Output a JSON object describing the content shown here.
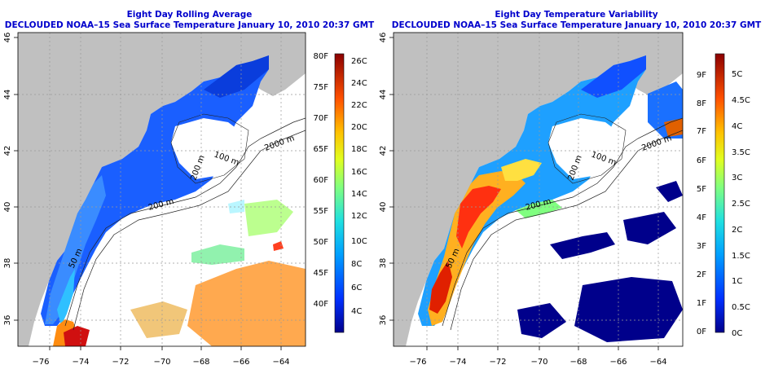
{
  "left_panel": {
    "title": "Eight Day Rolling Average",
    "subtitle": "DECLOUDED NOAA–15 Sea Surface Temperature January 10, 2010 20:37 GMT",
    "colorbar": {
      "fahrenheit": [
        "80F",
        "75F",
        "70F",
        "65F",
        "60F",
        "55F",
        "50F",
        "45F",
        "40F"
      ],
      "celsius": [
        "26C",
        "24C",
        "22C",
        "20C",
        "18C",
        "16C",
        "14C",
        "12C",
        "10C",
        "8C",
        "6C",
        "4C"
      ]
    },
    "contour_labels": [
      "100 m",
      "2000 m",
      "200 m",
      "200 m",
      "50 m"
    ]
  },
  "right_panel": {
    "title": "Eight Day Temperature Variability",
    "subtitle": "DECLOUDED NOAA–15 Sea Surface Temperature January 10, 2010 20:37 GMT",
    "colorbar": {
      "fahrenheit": [
        "9F",
        "8F",
        "7F",
        "6F",
        "5F",
        "4F",
        "3F",
        "2F",
        "1F",
        "0F"
      ],
      "celsius": [
        "5C",
        "4.5C",
        "4C",
        "3.5C",
        "3C",
        "2.5C",
        "2C",
        "1.5C",
        "1C",
        "0.5C",
        "0C"
      ]
    },
    "contour_labels": [
      "100 m",
      "2000 m",
      "200 m",
      "200 m",
      "50 m"
    ]
  },
  "axes": {
    "longitude_ticks": [
      "−76",
      "−74",
      "−72",
      "−70",
      "−68",
      "−66",
      "−64"
    ],
    "latitude_ticks": [
      "36",
      "38",
      "40",
      "42",
      "44",
      "46"
    ],
    "lon_range": [
      -77,
      -63
    ],
    "lat_range": [
      35,
      46
    ]
  },
  "colors": {
    "title": "#0000cc",
    "land": "#c0c0c0",
    "ocean_blank": "#ffffff"
  }
}
